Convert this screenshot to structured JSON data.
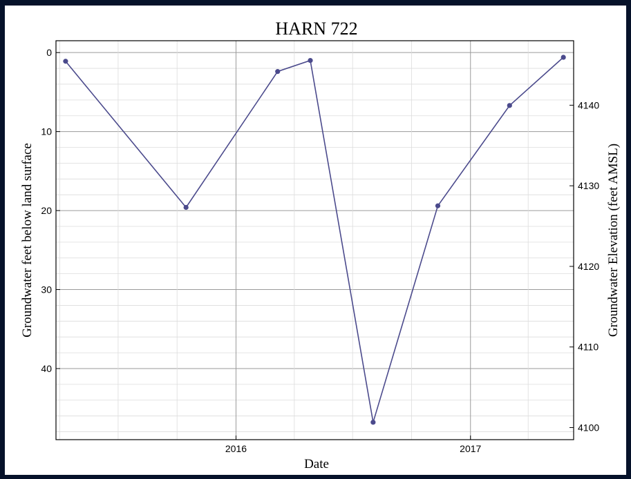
{
  "chart_data": {
    "type": "line",
    "title": "HARN 722",
    "xlabel": "Date",
    "ylabel": "Groundwater feet below land surface",
    "ylabel_right": "Groundwater Elevation (feet AMSL)",
    "x_tick_labels": [
      "2016",
      "2017"
    ],
    "y_tick_labels": [
      "0",
      "10",
      "20",
      "30",
      "40"
    ],
    "y2_tick_labels": [
      "4100",
      "4110",
      "4120",
      "4130",
      "4140"
    ],
    "ylim": [
      -1.5,
      49
    ],
    "y2lim": [
      4098.5,
      4148
    ],
    "y_inverted": true,
    "grid": true,
    "line_color": "#4b4a8c",
    "series": [
      {
        "x": [
          "2015-04-10",
          "2015-10-15",
          "2016-03-06",
          "2016-04-26",
          "2016-08-02",
          "2016-11-11",
          "2017-03-03",
          "2017-05-26"
        ],
        "values": [
          1.1,
          19.6,
          2.4,
          1.0,
          46.8,
          19.4,
          6.7,
          0.6
        ]
      }
    ]
  }
}
